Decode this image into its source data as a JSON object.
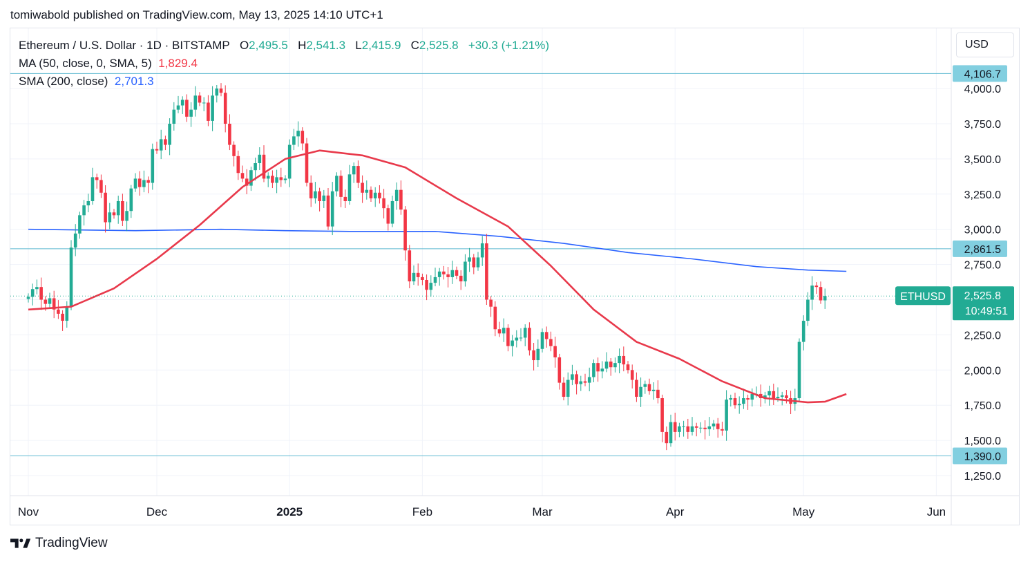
{
  "header": {
    "published_by": "tomiwabold published on TradingView.com, May 13, 2025 14:10 UTC+1"
  },
  "legend": {
    "symbol": "Ethereum / U.S. Dollar · 1D · BITSTAMP",
    "open_label": "O",
    "open": "2,495.5",
    "high_label": "H",
    "high": "2,541.3",
    "low_label": "L",
    "low": "2,415.9",
    "close_label": "C",
    "close": "2,525.8",
    "change": "+30.3 (+1.21%)",
    "ma50_label": "MA (50, close, 0, SMA, 5)",
    "ma50_value": "1,829.4",
    "sma200_label": "SMA (200, close)",
    "sma200_value": "2,701.3"
  },
  "currency_button": {
    "label": "USD"
  },
  "footer": {
    "brand": "TradingView"
  },
  "colors": {
    "up": "#22ab94",
    "down": "#f23645",
    "ma50": "#e8394b",
    "sma200": "#2962ff",
    "hline": "#5bb8d0",
    "price_label": "#22ab94",
    "level_label": "#82cfe0"
  },
  "chart_data": {
    "type": "candlestick",
    "title": "Ethereum / U.S. Dollar · 1D · BITSTAMP",
    "ylim": [
      1120,
      4440
    ],
    "y_ticks": [
      "1,250.0",
      "1,500.0",
      "1,750.0",
      "2,000.0",
      "2,250.0",
      "2,500.0",
      "2,750.0",
      "3,000.0",
      "3,250.0",
      "3,500.0",
      "3,750.0",
      "4,000.0"
    ],
    "x_ticks": [
      {
        "label": "Nov",
        "day": 0
      },
      {
        "label": "Dec",
        "day": 30
      },
      {
        "label": "2025",
        "day": 61,
        "bold": true
      },
      {
        "label": "Feb",
        "day": 92
      },
      {
        "label": "Mar",
        "day": 120
      },
      {
        "label": "Apr",
        "day": 151
      },
      {
        "label": "May",
        "day": 181
      },
      {
        "label": "Jun",
        "day": 212
      }
    ],
    "horizontal_levels": [
      {
        "value": 4106.7,
        "label": "4,106.7"
      },
      {
        "value": 2861.5,
        "label": "2,861.5"
      },
      {
        "value": 1390.0,
        "label": "1,390.0"
      }
    ],
    "last_price": {
      "value": 2525.8,
      "label": "2,525.8",
      "countdown": "10:49:51",
      "symbol": "ETHUSD"
    },
    "closes": [
      2520,
      2575,
      2590,
      2500,
      2470,
      2510,
      2430,
      2400,
      2350,
      2450,
      2870,
      2970,
      3100,
      3170,
      3200,
      3370,
      3350,
      3260,
      3050,
      3120,
      3100,
      3200,
      3060,
      3130,
      3290,
      3360,
      3300,
      3350,
      3330,
      3570,
      3560,
      3640,
      3600,
      3750,
      3850,
      3880,
      3920,
      3800,
      3850,
      3950,
      3900,
      3900,
      3770,
      3950,
      4000,
      3970,
      3750,
      3600,
      3520,
      3400,
      3360,
      3310,
      3420,
      3470,
      3530,
      3360,
      3380,
      3330,
      3370,
      3350,
      3360,
      3600,
      3660,
      3700,
      3610,
      3330,
      3220,
      3270,
      3200,
      3240,
      3020,
      3270,
      3380,
      3230,
      3200,
      3390,
      3450,
      3330,
      3260,
      3280,
      3220,
      3260,
      3220,
      3150,
      3040,
      3200,
      3280,
      3140,
      2850,
      2630,
      2690,
      2660,
      2640,
      2570,
      2620,
      2660,
      2700,
      2680,
      2660,
      2710,
      2670,
      2630,
      2770,
      2800,
      2730,
      2800,
      2900,
      2500,
      2450,
      2290,
      2260,
      2300,
      2170,
      2210,
      2230,
      2230,
      2300,
      2140,
      2070,
      2150,
      2270,
      2220,
      2170,
      2090,
      1910,
      1810,
      1930,
      1970,
      1900,
      1920,
      1910,
      1950,
      2050,
      1990,
      2010,
      2060,
      2020,
      2050,
      2100,
      2040,
      2000,
      1930,
      1810,
      1880,
      1900,
      1850,
      1860,
      1800,
      1560,
      1480,
      1630,
      1560,
      1600,
      1600,
      1560,
      1600,
      1590,
      1590,
      1580,
      1600,
      1620,
      1580,
      1570,
      1790,
      1800,
      1750,
      1760,
      1800,
      1790,
      1830,
      1830,
      1800,
      1820,
      1850,
      1800,
      1810,
      1820,
      1800,
      1760,
      1800,
      2200,
      2350,
      2500,
      2600,
      2590,
      2495,
      2525.8
    ],
    "sma200": [
      [
        0,
        3000
      ],
      [
        25,
        2990
      ],
      [
        45,
        3000
      ],
      [
        60,
        2990
      ],
      [
        75,
        2985
      ],
      [
        95,
        2985
      ],
      [
        110,
        2950
      ],
      [
        125,
        2900
      ],
      [
        140,
        2835
      ],
      [
        155,
        2790
      ],
      [
        170,
        2735
      ],
      [
        182,
        2710
      ],
      [
        191,
        2701.3
      ]
    ],
    "ma50": [
      [
        0,
        2430
      ],
      [
        10,
        2450
      ],
      [
        20,
        2580
      ],
      [
        30,
        2790
      ],
      [
        40,
        3030
      ],
      [
        50,
        3300
      ],
      [
        60,
        3500
      ],
      [
        68,
        3560
      ],
      [
        78,
        3525
      ],
      [
        88,
        3440
      ],
      [
        100,
        3220
      ],
      [
        112,
        3020
      ],
      [
        122,
        2740
      ],
      [
        132,
        2430
      ],
      [
        142,
        2200
      ],
      [
        152,
        2080
      ],
      [
        162,
        1920
      ],
      [
        172,
        1800
      ],
      [
        182,
        1770
      ],
      [
        186,
        1775
      ],
      [
        191,
        1829.4
      ]
    ]
  }
}
